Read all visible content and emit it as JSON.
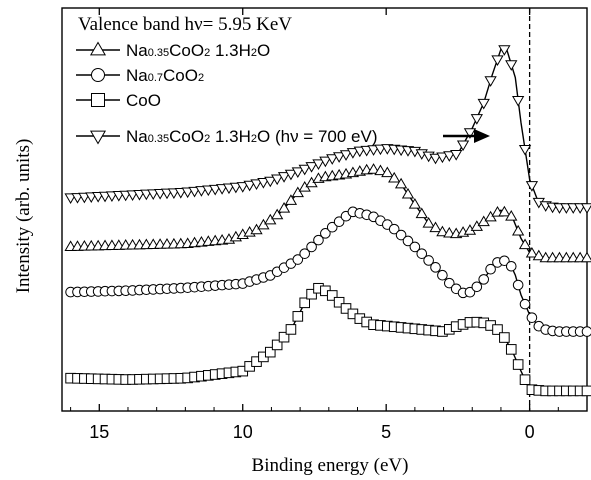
{
  "chart_data": {
    "type": "line",
    "title": "Valence band  hν= 5.95 KeV",
    "xlabel": "Binding energy (eV)",
    "ylabel": "Intensity (arb. units)",
    "xlim": [
      16.3,
      -2.0
    ],
    "x_reversed": true,
    "x_ticks": [
      15,
      10,
      5,
      0
    ],
    "x_tick_labels": [
      "15",
      "10",
      "5",
      "0"
    ],
    "y_ticks_labeled": false,
    "reference_line_x": 0,
    "legend_position": "top-left",
    "legend": [
      {
        "parts": [
          "Na",
          "0.35",
          "CoO",
          "2",
          " 1.3H",
          "2",
          "O"
        ],
        "marker": "triangle-up"
      },
      {
        "parts": [
          "Na",
          "0.7",
          "CoO",
          "2"
        ],
        "marker": "circle"
      },
      {
        "parts": [
          "CoO"
        ],
        "marker": "square"
      },
      {
        "parts": [
          "Na",
          "0.35",
          "CoO",
          "2",
          " 1.3H",
          "2",
          "O (hν = 700 eV)"
        ],
        "marker": "triangle-down"
      }
    ],
    "arrow_annotation": "points to Na0.35CoO2 1.3H2O (hν = 700 eV) curve",
    "series": [
      {
        "name": "Na0.35CoO2 1.3H2O (hν = 700 eV)",
        "marker": "triangle-down",
        "x": [
          16.0,
          14.0,
          12.0,
          10.0,
          9.0,
          8.0,
          7.0,
          6.0,
          5.0,
          4.0,
          3.3,
          2.5,
          2.0,
          1.6,
          1.3,
          1.0,
          0.8,
          0.5,
          0.3,
          0.0,
          -0.3,
          -0.6,
          -1.0,
          -2.0
        ],
        "y": [
          0.215,
          0.225,
          0.235,
          0.255,
          0.275,
          0.31,
          0.35,
          0.38,
          0.39,
          0.38,
          0.355,
          0.37,
          0.46,
          0.55,
          0.65,
          0.74,
          0.74,
          0.64,
          0.48,
          0.28,
          0.2,
          0.185,
          0.18,
          0.18
        ]
      },
      {
        "name": "Na0.35CoO2 1.3H2O",
        "marker": "triangle-up",
        "x": [
          16.0,
          14.0,
          12.0,
          10.5,
          9.5,
          8.7,
          8.0,
          7.3,
          6.5,
          5.5,
          5.0,
          4.5,
          4.0,
          3.5,
          3.0,
          2.5,
          2.0,
          1.5,
          1.0,
          0.6,
          0.3,
          0.0,
          -0.5,
          -1.0,
          -2.0
        ],
        "y": [
          0.04,
          0.045,
          0.05,
          0.065,
          0.1,
          0.16,
          0.24,
          0.285,
          0.295,
          0.315,
          0.305,
          0.265,
          0.19,
          0.12,
          0.09,
          0.085,
          0.1,
          0.135,
          0.17,
          0.145,
          0.07,
          0.02,
          0.0,
          0.0,
          0.0
        ]
      },
      {
        "name": "Na0.7CoO2",
        "marker": "circle",
        "x": [
          16.0,
          14.0,
          12.0,
          10.0,
          9.0,
          8.0,
          7.0,
          6.2,
          5.5,
          4.8,
          4.0,
          3.3,
          2.7,
          2.2,
          1.7,
          1.3,
          1.0,
          0.7,
          0.5,
          0.3,
          0.0,
          -0.3,
          -0.6,
          -1.0,
          -2.0
        ],
        "y": [
          -0.12,
          -0.115,
          -0.105,
          -0.09,
          -0.06,
          0.0,
          0.1,
          0.165,
          0.15,
          0.11,
          0.04,
          -0.03,
          -0.1,
          -0.13,
          -0.09,
          -0.03,
          -0.005,
          -0.015,
          -0.06,
          -0.13,
          -0.2,
          -0.24,
          -0.255,
          -0.26,
          -0.26
        ]
      },
      {
        "name": "CoO",
        "marker": "square",
        "x": [
          16.0,
          14.0,
          12.0,
          10.0,
          9.0,
          8.3,
          7.8,
          7.4,
          7.0,
          6.5,
          6.0,
          5.5,
          5.0,
          4.0,
          3.0,
          2.5,
          2.0,
          1.5,
          1.0,
          0.6,
          0.3,
          0.0,
          -0.5,
          -1.0,
          -2.0
        ],
        "y": [
          -0.425,
          -0.43,
          -0.425,
          -0.4,
          -0.33,
          -0.25,
          -0.15,
          -0.105,
          -0.12,
          -0.17,
          -0.21,
          -0.235,
          -0.24,
          -0.25,
          -0.26,
          -0.24,
          -0.225,
          -0.23,
          -0.26,
          -0.33,
          -0.4,
          -0.465,
          -0.47,
          -0.47,
          -0.47
        ]
      }
    ]
  }
}
